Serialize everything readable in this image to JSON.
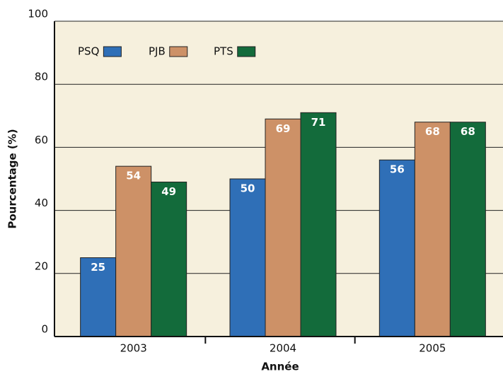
{
  "chart_data": {
    "type": "bar",
    "categories": [
      "2003",
      "2004",
      "2005"
    ],
    "series": [
      {
        "name": "PSQ",
        "color": "#2f6fb7",
        "values": [
          25,
          50,
          56
        ]
      },
      {
        "name": "PJB",
        "color": "#cd9167",
        "values": [
          54,
          69,
          68
        ]
      },
      {
        "name": "PTS",
        "color": "#136b3b",
        "values": [
          49,
          71,
          68
        ]
      }
    ],
    "y_label": "Pourcentage (%)",
    "x_label": "Année",
    "ylim": [
      0,
      100
    ],
    "yticks": [
      0,
      20,
      40,
      60,
      80,
      100
    ],
    "grid": true,
    "legend": "top-left"
  }
}
